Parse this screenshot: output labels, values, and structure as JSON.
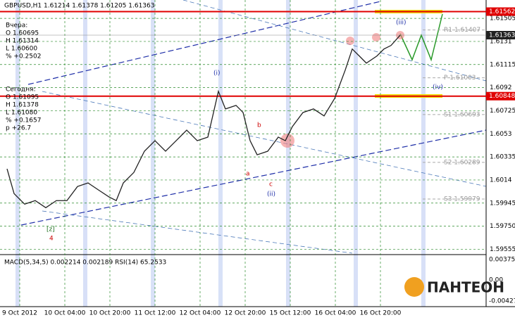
{
  "chart_data": {
    "type": "line",
    "title": "GBPUSD,H1  1.61214 1.61378 1.61205 1.61363",
    "x": [
      2.5,
      5,
      8.75,
      12.5,
      16.25,
      20,
      23.75,
      27.5,
      31.25,
      35,
      38.75,
      41.25,
      43.75,
      47.5,
      51.25,
      55,
      58.75,
      62.5,
      66.25,
      70,
      73.75,
      77.5,
      80,
      83.75,
      86.25,
      88.75,
      91.25,
      95,
      98.75,
      101.25,
      103.75,
      107.5,
      111.25,
      115,
      118.75,
      122.5,
      125,
      127.5,
      130,
      133.75,
      136.25,
      138.75,
      142
    ],
    "series": [
      {
        "name": "GBPUSD",
        "color": "#222222",
        "values": [
          1.60234,
          1.60025,
          1.59936,
          1.59966,
          1.59906,
          1.59966,
          1.59966,
          1.60085,
          1.60115,
          1.60055,
          1.59996,
          1.59966,
          1.60115,
          1.60204,
          1.60383,
          1.60472,
          1.60383,
          1.60472,
          1.60561,
          1.60472,
          1.60502,
          1.60889,
          1.6074,
          1.6077,
          1.6071,
          1.60472,
          1.60353,
          1.60383,
          1.60502,
          1.60472,
          1.60591,
          1.6071,
          1.6074,
          1.60681,
          1.60829,
          1.61068,
          1.61246,
          1.61187,
          1.61127,
          1.61187,
          1.61246,
          1.61276,
          1.61363
        ]
      }
    ],
    "xlim": [
      0,
      172.5
    ],
    "xticks": [
      {
        "value": 7,
        "label": "9 Oct 2012"
      },
      {
        "value": 23,
        "label": "10 Oct 04:00"
      },
      {
        "value": 39,
        "label": "10 Oct 20:00"
      },
      {
        "value": 55,
        "label": "11 Oct 12:00"
      },
      {
        "value": 71,
        "label": "12 Oct 04:00"
      },
      {
        "value": 87,
        "label": "12 Oct 20:00"
      },
      {
        "value": 103,
        "label": "15 Oct 12:00"
      },
      {
        "value": 119,
        "label": "16 Oct 04:00"
      },
      {
        "value": 135,
        "label": "16 Oct 20:00"
      }
    ],
    "ylim": [
      1.5951,
      1.6166
    ],
    "yticks": [
      1.61505,
      1.6131,
      1.61115,
      1.6092,
      1.60725,
      1.6053,
      1.60335,
      1.6014,
      {
        "value": 1.59945,
        "label": "1.59945"
      },
      {
        "value": 1.5975,
        "label": "1.59750"
      },
      1.59555
    ],
    "grid": true,
    "levels": [
      {
        "value": 1.61562,
        "label": "1.61562",
        "color": "#e00000"
      },
      {
        "value": 1.60848,
        "label": "1.60848",
        "color": "#e00000"
      }
    ],
    "current_price": {
      "value": 1.61363,
      "label": "1.61363"
    },
    "pivots": [
      {
        "value": 1.61407,
        "label": "R1 1.61407"
      },
      {
        "value": 1.61003,
        "label": "P 1.61003"
      },
      {
        "value": 1.60693,
        "label": "S1 1.60693"
      },
      {
        "value": 1.60289,
        "label": "S2 1.60289"
      },
      {
        "value": 1.59979,
        "label": "S3 1.59979"
      }
    ],
    "info": [
      "Вчера:",
      "O 1.60695",
      "H 1.61314",
      "L 1.60600",
      "% +0.2502",
      "Сегодня:",
      "O 1.61095",
      "H 1.61378",
      "L 1.61080",
      "% +0.1657",
      "p +26.7"
    ],
    "waves": [
      "(i)",
      "(ii)",
      "(iii)",
      "(iv)",
      "a",
      "b",
      "c",
      "[z]",
      "4"
    ],
    "indicator": {
      "title": "MACD(5,34,5) 0.002214 0.002189 RSI(14) 65.2533",
      "labels": [
        "0.003757",
        "0.00",
        "-0.00427"
      ]
    },
    "logo": "ПАНТЕОН"
  }
}
